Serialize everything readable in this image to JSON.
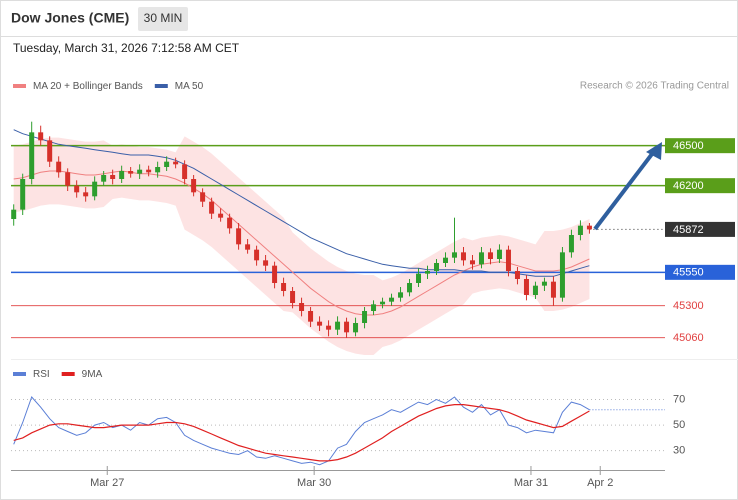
{
  "header": {
    "title": "Dow Jones (CME)",
    "interval": "30 MIN",
    "timestamp": "Tuesday, March 31, 2026 7:12:58 AM CET"
  },
  "chart_data": [
    {
      "type": "candlestick",
      "credit": "Research © 2026 Trading Central",
      "xlim": [
        -0.3,
        72.4
      ],
      "ylim": [
        44900,
        46850
      ],
      "up_color": "#2e9e2e",
      "down_color": "#d6302a",
      "open": [
        45950,
        46020,
        46250,
        46600,
        46540,
        46380,
        46300,
        46200,
        46150,
        46120,
        46230,
        46280,
        46250,
        46310,
        46290,
        46320,
        46300,
        46340,
        46380,
        46360,
        46250,
        46150,
        46080,
        45990,
        45960,
        45880,
        45760,
        45720,
        45640,
        45600,
        45470,
        45410,
        45320,
        45260,
        45180,
        45150,
        45120,
        45180,
        45100,
        45170,
        45260,
        45310,
        45330,
        45360,
        45400,
        45470,
        45540,
        45560,
        45620,
        45660,
        45700,
        45640,
        45610,
        45700,
        45650,
        45720,
        45560,
        45500,
        45380,
        45450,
        45480,
        45360,
        45700,
        45830,
        45900
      ],
      "high": [
        46060,
        46290,
        46680,
        46650,
        46570,
        46420,
        46330,
        46240,
        46190,
        46270,
        46310,
        46320,
        46350,
        46340,
        46360,
        46350,
        46380,
        46420,
        46410,
        46390,
        46280,
        46180,
        46110,
        46030,
        45990,
        45920,
        45800,
        45750,
        45680,
        45630,
        45510,
        45440,
        45360,
        45290,
        45220,
        45190,
        45220,
        45210,
        45210,
        45290,
        45340,
        45360,
        45390,
        45440,
        45500,
        45580,
        45600,
        45650,
        45700,
        45960,
        45740,
        45680,
        45740,
        45730,
        45760,
        45750,
        45590,
        45530,
        45480,
        45510,
        45520,
        45740,
        45870,
        45940,
        45920
      ],
      "low": [
        45900,
        45980,
        46210,
        46500,
        46340,
        46260,
        46160,
        46110,
        46080,
        46090,
        46200,
        46210,
        46220,
        46260,
        46250,
        46270,
        46260,
        46310,
        46330,
        46210,
        46120,
        46040,
        45950,
        45930,
        45840,
        45720,
        45690,
        45600,
        45560,
        45430,
        45370,
        45280,
        45220,
        45140,
        45110,
        45070,
        45080,
        45060,
        45070,
        45130,
        45230,
        45280,
        45300,
        45330,
        45370,
        45440,
        45500,
        45530,
        45590,
        45620,
        45600,
        45570,
        45580,
        45610,
        45620,
        45520,
        45460,
        45340,
        45350,
        45410,
        45300,
        45330,
        45660,
        45790,
        45840
      ],
      "close": [
        46020,
        46250,
        46600,
        46540,
        46380,
        46300,
        46200,
        46150,
        46120,
        46230,
        46280,
        46250,
        46310,
        46290,
        46320,
        46300,
        46340,
        46380,
        46360,
        46250,
        46150,
        46080,
        45990,
        45960,
        45880,
        45760,
        45720,
        45640,
        45600,
        45470,
        45410,
        45320,
        45260,
        45180,
        45150,
        45120,
        45180,
        45100,
        45170,
        45260,
        45310,
        45330,
        45360,
        45400,
        45470,
        45540,
        45560,
        45620,
        45660,
        45700,
        45640,
        45610,
        45700,
        45650,
        45720,
        45560,
        45500,
        45380,
        45450,
        45480,
        45360,
        45700,
        45830,
        45900,
        45872
      ],
      "series": [
        {
          "name": "MA 20 + Bollinger Bands",
          "color": "#f08080",
          "band_color": "#fde3e3",
          "values": [
            46250,
            46260,
            46280,
            46300,
            46310,
            46310,
            46300,
            46290,
            46280,
            46280,
            46290,
            46300,
            46310,
            46300,
            46290,
            46290,
            46280,
            46270,
            46250,
            46220,
            46180,
            46140,
            46090,
            46030,
            45970,
            45910,
            45850,
            45790,
            45730,
            45670,
            45610,
            45550,
            45490,
            45430,
            45380,
            45330,
            45290,
            45260,
            45240,
            45230,
            45230,
            45240,
            45260,
            45290,
            45330,
            45370,
            45410,
            45450,
            45490,
            45530,
            45560,
            45590,
            45610,
            45620,
            45630,
            45620,
            45600,
            45580,
            45560,
            45560,
            45560,
            45570,
            45590,
            45620,
            45650
          ],
          "upper": [
            46500,
            46510,
            46530,
            46550,
            46560,
            46560,
            46550,
            46540,
            46530,
            46530,
            46540,
            46500,
            46510,
            46500,
            46490,
            46490,
            46480,
            46470,
            46450,
            46570,
            46530,
            46490,
            46440,
            46380,
            46320,
            46260,
            46200,
            46140,
            46080,
            46020,
            45960,
            45850,
            45790,
            45730,
            45680,
            45630,
            45590,
            45560,
            45540,
            45530,
            45530,
            45490,
            45510,
            45540,
            45580,
            45620,
            45660,
            45700,
            45740,
            45780,
            45810,
            45790,
            45810,
            45820,
            45830,
            45820,
            45800,
            45780,
            45760,
            45860,
            45860,
            45870,
            45890,
            45920,
            45950
          ],
          "lower": [
            46000,
            46010,
            46030,
            46050,
            46060,
            46060,
            46050,
            46040,
            46030,
            46030,
            46040,
            46100,
            46110,
            46100,
            46090,
            46090,
            46080,
            46070,
            46050,
            45870,
            45830,
            45790,
            45740,
            45680,
            45620,
            45560,
            45500,
            45440,
            45380,
            45320,
            45260,
            45250,
            45190,
            45130,
            45080,
            45030,
            44990,
            44960,
            44940,
            44930,
            44930,
            44990,
            45010,
            45040,
            45080,
            45120,
            45160,
            45200,
            45240,
            45280,
            45310,
            45390,
            45410,
            45420,
            45430,
            45420,
            45400,
            45380,
            45360,
            45260,
            45260,
            45270,
            45290,
            45320,
            45350
          ]
        },
        {
          "name": "MA 50",
          "color": "#3a5fa8",
          "values": [
            46620,
            46590,
            46570,
            46550,
            46530,
            46510,
            46500,
            46490,
            46480,
            46470,
            46460,
            46450,
            46440,
            46430,
            46430,
            46430,
            46420,
            46410,
            46390,
            46360,
            46330,
            46290,
            46250,
            46210,
            46170,
            46130,
            46090,
            46050,
            46010,
            45970,
            45930,
            45890,
            45850,
            45810,
            45780,
            45750,
            45720,
            45690,
            45670,
            45650,
            45630,
            45610,
            45600,
            45590,
            45580,
            45580,
            45570,
            45570,
            45570,
            45570,
            45560,
            45560,
            45560,
            45550,
            45550,
            45550,
            45540,
            45530,
            45520,
            45520,
            45520,
            45540,
            45560,
            45580,
            45600
          ]
        }
      ],
      "levels": [
        {
          "value": 46500,
          "color": "#5a9e1a",
          "boxed": true,
          "dotted": false
        },
        {
          "value": 46200,
          "color": "#5a9e1a",
          "boxed": true,
          "dotted": false
        },
        {
          "value": 45872,
          "color": "#333333",
          "boxed": true,
          "dotted": true
        },
        {
          "value": 45550,
          "color": "#2962d9",
          "boxed": true,
          "dotted": false
        },
        {
          "value": 45300,
          "color": "#e04040",
          "boxed": false,
          "dotted": false
        },
        {
          "value": 45060,
          "color": "#e04040",
          "boxed": false,
          "dotted": false
        }
      ]
    },
    {
      "type": "line",
      "xlim": [
        -0.3,
        72.4
      ],
      "ylim": [
        18,
        79
      ],
      "yticks": [
        70,
        50,
        30
      ],
      "xticks": [
        {
          "value": 10.4,
          "label": "Mar 27"
        },
        {
          "value": 33.4,
          "label": "Mar 30"
        },
        {
          "value": 57.5,
          "label": "Mar 31"
        },
        {
          "value": 65.2,
          "label": "Apr 2"
        }
      ],
      "series": [
        {
          "name": "RSI",
          "color": "#5b7fd6",
          "values": [
            35,
            52,
            72,
            64,
            55,
            48,
            45,
            42,
            44,
            50,
            52,
            48,
            50,
            46,
            52,
            50,
            55,
            56,
            52,
            42,
            38,
            35,
            32,
            30,
            28,
            27,
            30,
            25,
            24,
            26,
            24,
            22,
            20,
            21,
            19,
            22,
            32,
            35,
            45,
            52,
            55,
            58,
            62,
            60,
            64,
            68,
            66,
            70,
            67,
            72,
            64,
            60,
            66,
            58,
            62,
            50,
            48,
            44,
            46,
            45,
            44,
            60,
            68,
            66,
            62
          ]
        },
        {
          "name": "9MA",
          "color": "#e02020",
          "values": [
            38,
            40,
            44,
            47,
            50,
            51,
            51,
            50,
            49,
            48,
            48,
            49,
            50,
            50,
            50,
            50,
            51,
            52,
            52,
            51,
            49,
            46,
            43,
            40,
            37,
            34,
            32,
            30,
            28,
            27,
            26,
            25,
            24,
            23,
            22,
            22,
            23,
            25,
            28,
            32,
            36,
            40,
            45,
            49,
            53,
            57,
            60,
            63,
            65,
            66,
            66,
            65,
            64,
            63,
            62,
            60,
            57,
            54,
            52,
            50,
            48,
            49,
            53,
            57,
            61
          ]
        }
      ]
    }
  ]
}
